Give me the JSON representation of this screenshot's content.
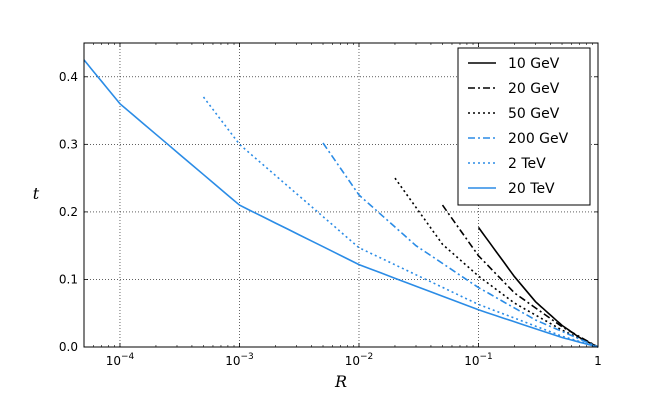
{
  "chart_data": {
    "type": "line",
    "xlabel": "R",
    "ylabel": "t",
    "xscale": "log",
    "xlim": [
      5e-05,
      1
    ],
    "ylim": [
      0,
      0.45
    ],
    "grid": true,
    "legend_position": "top-right",
    "xticks": [
      {
        "value": 0.0001,
        "base": "10",
        "exp": "−4"
      },
      {
        "value": 0.001,
        "base": "10",
        "exp": "−3"
      },
      {
        "value": 0.01,
        "base": "10",
        "exp": "−2"
      },
      {
        "value": 0.1,
        "base": "10",
        "exp": "−1"
      },
      {
        "value": 1,
        "base": "1",
        "exp": ""
      }
    ],
    "yticks": [
      {
        "value": 0.0,
        "label": "0.0"
      },
      {
        "value": 0.1,
        "label": "0.1"
      },
      {
        "value": 0.2,
        "label": "0.2"
      },
      {
        "value": 0.3,
        "label": "0.3"
      },
      {
        "value": 0.4,
        "label": "0.4"
      }
    ],
    "series": [
      {
        "name": "10 GeV",
        "color": "#000000",
        "style": "solid",
        "x": [
          0.1,
          0.2,
          0.3,
          0.5,
          0.7,
          1.0
        ],
        "y": [
          0.177,
          0.104,
          0.067,
          0.032,
          0.014,
          0.0
        ]
      },
      {
        "name": "20 GeV",
        "color": "#000000",
        "style": "dashdot",
        "x": [
          0.05,
          0.1,
          0.2,
          0.5,
          1.0
        ],
        "y": [
          0.21,
          0.135,
          0.08,
          0.03,
          0.0
        ]
      },
      {
        "name": "50 GeV",
        "color": "#000000",
        "style": "dotted",
        "x": [
          0.02,
          0.05,
          0.1,
          0.2,
          0.5,
          1.0
        ],
        "y": [
          0.25,
          0.152,
          0.105,
          0.065,
          0.025,
          0.0
        ]
      },
      {
        "name": "200 GeV",
        "color": "#2b8ce6",
        "style": "dashdot",
        "x": [
          0.005,
          0.01,
          0.03,
          0.1,
          0.3,
          1.0
        ],
        "y": [
          0.302,
          0.225,
          0.15,
          0.088,
          0.04,
          0.0
        ]
      },
      {
        "name": "2 TeV",
        "color": "#2b8ce6",
        "style": "dotted",
        "x": [
          0.0005,
          0.001,
          0.01,
          0.1,
          0.5,
          1.0
        ],
        "y": [
          0.37,
          0.3,
          0.147,
          0.063,
          0.016,
          0.0
        ]
      },
      {
        "name": "20 TeV",
        "color": "#2b8ce6",
        "style": "solid",
        "x": [
          5e-05,
          0.0001,
          0.001,
          0.01,
          0.1,
          0.5,
          1.0
        ],
        "y": [
          0.425,
          0.36,
          0.21,
          0.122,
          0.055,
          0.014,
          0.0
        ]
      }
    ]
  }
}
